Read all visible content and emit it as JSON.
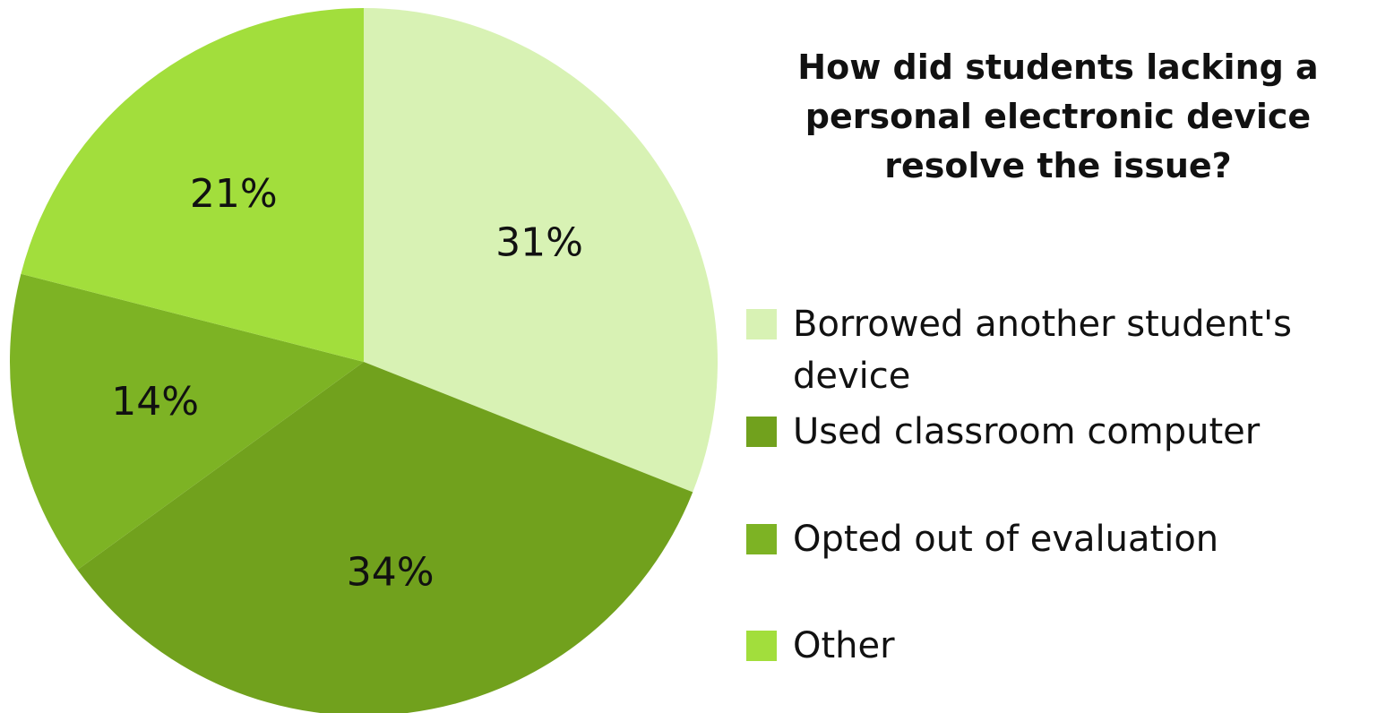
{
  "chart_data": {
    "type": "pie",
    "title": "How did students lacking a personal electronic device resolve the issue?",
    "categories": [
      "Borrowed another student's device",
      "Used classroom computer",
      "Opted out of evaluation",
      "Other"
    ],
    "values": [
      31,
      34,
      14,
      21
    ],
    "labels": [
      "31%",
      "34%",
      "14%",
      "21%"
    ],
    "colors": [
      "#d8f2b4",
      "#71a11d",
      "#7db324",
      "#a2de3c"
    ],
    "legend_position": "right"
  }
}
